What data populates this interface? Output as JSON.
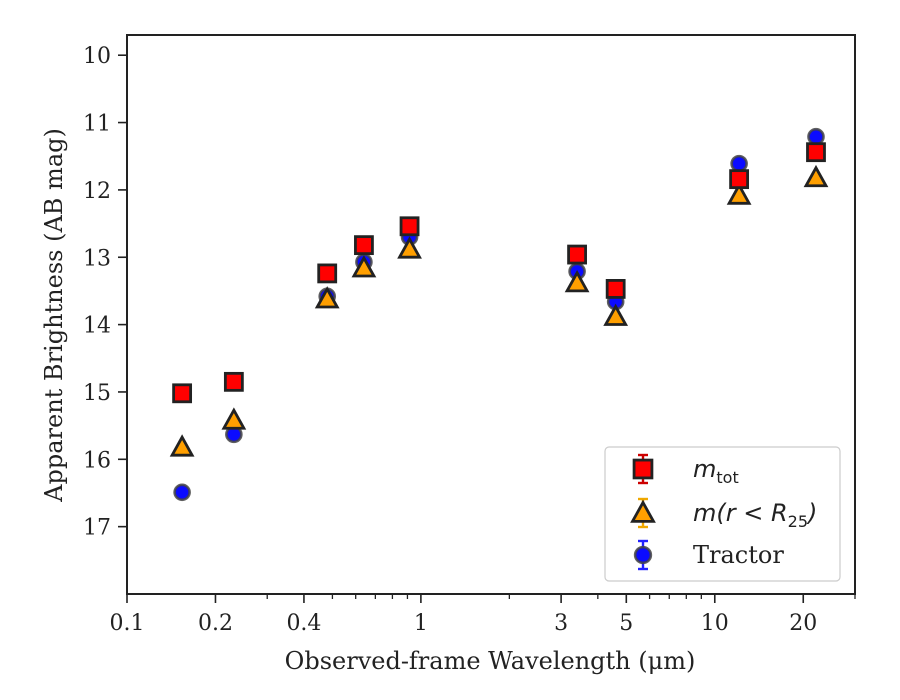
{
  "chart_data": {
    "type": "scatter",
    "xlabel": "Observed-frame Wavelength (μm)",
    "ylabel": "Apparent Brightness (AB mag)",
    "xscale": "log",
    "xlim": [
      0.1,
      30
    ],
    "ylim": [
      18,
      9.7
    ],
    "y_inverted": true,
    "grid": false,
    "legend_position": "lower-right",
    "x_ticks": [
      {
        "value": 0.1,
        "label": "0.1"
      },
      {
        "value": 0.2,
        "label": "0.2"
      },
      {
        "value": 0.4,
        "label": "0.4"
      },
      {
        "value": 1,
        "label": "1"
      },
      {
        "value": 3,
        "label": "3"
      },
      {
        "value": 5,
        "label": "5"
      },
      {
        "value": 10,
        "label": "10"
      },
      {
        "value": 20,
        "label": "20"
      }
    ],
    "y_ticks": [
      {
        "value": 10,
        "label": "10"
      },
      {
        "value": 11,
        "label": "11"
      },
      {
        "value": 12,
        "label": "12"
      },
      {
        "value": 13,
        "label": "13"
      },
      {
        "value": 14,
        "label": "14"
      },
      {
        "value": 15,
        "label": "15"
      },
      {
        "value": 16,
        "label": "16"
      },
      {
        "value": 17,
        "label": "17"
      }
    ],
    "series": [
      {
        "name": "m_tot",
        "label_base": "m",
        "label_sub": "tot",
        "marker": "square",
        "face_color": "#ff0000",
        "edge_color": "#222222",
        "error_color": "#cc0000",
        "x": [
          0.154,
          0.231,
          0.48,
          0.64,
          0.915,
          3.4,
          4.6,
          12.1,
          22.1
        ],
        "y": [
          15.02,
          14.85,
          13.24,
          12.82,
          12.54,
          12.96,
          13.47,
          11.84,
          11.44
        ]
      },
      {
        "name": "m(r<R25)",
        "label_base": "m(r < R",
        "label_sub": "25",
        "label_tail": ")",
        "marker": "triangle",
        "face_color": "#ff9f00",
        "edge_color": "#222222",
        "error_color": "#f0a800",
        "x": [
          0.154,
          0.231,
          0.48,
          0.64,
          0.915,
          3.4,
          4.6,
          12.1,
          22.1
        ],
        "y": [
          15.82,
          15.42,
          13.62,
          13.16,
          12.88,
          13.38,
          13.88,
          12.08,
          11.82
        ]
      },
      {
        "name": "Tractor",
        "marker": "circle",
        "face_color": "#0b0bff",
        "edge_color": "#444444",
        "error_color": "#2222ff",
        "x": [
          0.154,
          0.231,
          0.48,
          0.64,
          0.915,
          3.4,
          4.6,
          12.1,
          22.1
        ],
        "y": [
          16.49,
          15.63,
          13.58,
          13.07,
          12.7,
          13.21,
          13.66,
          11.61,
          11.21
        ]
      }
    ]
  }
}
